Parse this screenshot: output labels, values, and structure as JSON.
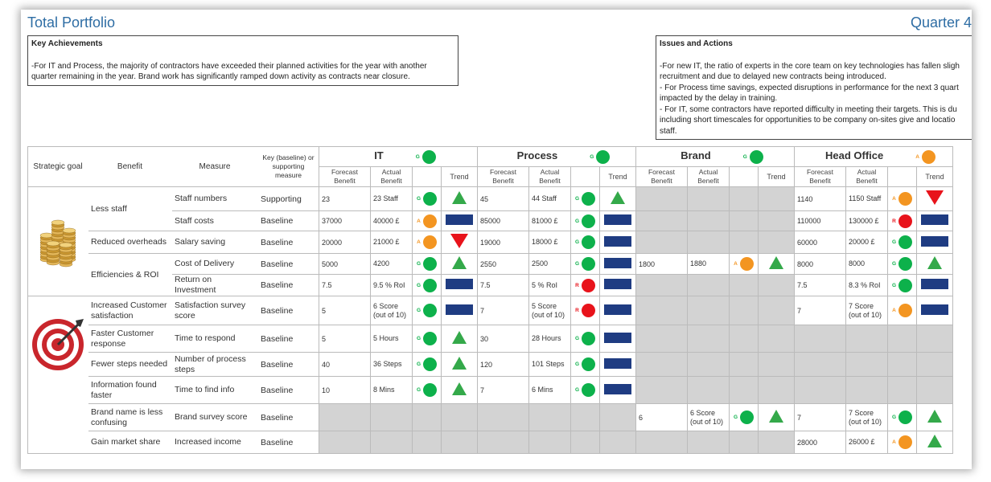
{
  "header": {
    "title": "Total Portfolio",
    "period": "Quarter 4"
  },
  "achievements": {
    "heading": "Key Achievements",
    "text": "-For IT and Process, the majority of contractors have exceeded their planned activities for the year with another quarter remaining in the year. Brand work has significantly ramped down activity as contracts near closure."
  },
  "issues": {
    "heading": "Issues and Actions",
    "text": "-For new IT, the ratio of experts in the core team on key technologies has fallen sligh\nrecruitment and due to delayed new contracts being introduced.\n- For Process time savings, expected disruptions in performance for the next 3 quart\nimpacted by the delay in training.\n- For IT, some contractors have reported difficulty in meeting their targets. This is du\nincluding short timescales for opportunities to be company on-sites give and locatio\nstaff."
  },
  "table": {
    "col_strategic": "Strategic goal",
    "col_benefit": "Benefit",
    "col_measure": "Measure",
    "col_key": "Key (baseline) or supporting measure",
    "groups": [
      {
        "name": "IT",
        "rag": "G"
      },
      {
        "name": "Process",
        "rag": "G"
      },
      {
        "name": "Brand",
        "rag": "G"
      },
      {
        "name": "Head Office",
        "rag": "A"
      }
    ],
    "sub_forecast": "Forecast Benefit",
    "sub_actual": "Actual Benefit",
    "sub_trend": "Trend",
    "goal_icons": [
      "coins-stack-icon",
      "target-dart-icon"
    ],
    "benefits": [
      "Less staff",
      "Reduced overheads",
      "Efficiencies & ROI",
      "Increased Customer satisfaction",
      "Faster Customer response",
      "Fewer steps needed",
      "Information found faster",
      "Brand name is less confusing",
      "Gain market share"
    ],
    "rows": [
      {
        "measure": "Staff numbers",
        "key": "Supporting",
        "it": [
          "23",
          "23 Staff",
          "G",
          "up"
        ],
        "process": [
          "45",
          "44 Staff",
          "G",
          "up"
        ],
        "brand": null,
        "ho": [
          "1140",
          "1150 Staff",
          "A",
          "down"
        ]
      },
      {
        "measure": "Staff costs",
        "key": "Baseline",
        "it": [
          "37000",
          "40000 £",
          "A",
          "bar"
        ],
        "process": [
          "85000",
          "81000 £",
          "G",
          "bar"
        ],
        "brand": null,
        "ho": [
          "110000",
          "130000 £",
          "R",
          "bar"
        ]
      },
      {
        "measure": "Salary saving",
        "key": "Baseline",
        "it": [
          "20000",
          "21000 £",
          "A",
          "down"
        ],
        "process": [
          "19000",
          "18000 £",
          "G",
          "bar"
        ],
        "brand": null,
        "ho": [
          "60000",
          "20000 £",
          "G",
          "bar"
        ]
      },
      {
        "measure": "Cost of Delivery",
        "key": "Baseline",
        "it": [
          "5000",
          "4200",
          "G",
          "up"
        ],
        "process": [
          "2550",
          "2500",
          "G",
          "bar"
        ],
        "brand": [
          "1800",
          "1880",
          "A",
          "up"
        ],
        "ho": [
          "8000",
          "8000",
          "G",
          "up"
        ]
      },
      {
        "measure": "Return on Investment",
        "key": "Baseline",
        "it": [
          "7.5",
          "9.5 % RoI",
          "G",
          "bar"
        ],
        "process": [
          "7.5",
          "5 % RoI",
          "R",
          "bar"
        ],
        "brand": null,
        "ho": [
          "7.5",
          "8.3 % RoI",
          "G",
          "bar"
        ]
      },
      {
        "measure": "Satisfaction survey score",
        "key": "Baseline",
        "it": [
          "5",
          "6 Score (out of 10)",
          "G",
          "bar"
        ],
        "process": [
          "7",
          "5 Score (out of 10)",
          "R",
          "bar"
        ],
        "brand": null,
        "ho": [
          "7",
          "7 Score (out of 10)",
          "A",
          "bar"
        ]
      },
      {
        "measure": "Time to respond",
        "key": "Baseline",
        "it": [
          "5",
          "5 Hours",
          "G",
          "up"
        ],
        "process": [
          "30",
          "28 Hours",
          "G",
          "bar"
        ],
        "brand": null,
        "ho": null
      },
      {
        "measure": "Number of process steps",
        "key": "Baseline",
        "it": [
          "40",
          "36 Steps",
          "G",
          "up"
        ],
        "process": [
          "120",
          "101 Steps",
          "G",
          "bar"
        ],
        "brand": null,
        "ho": null
      },
      {
        "measure": "Time to find info",
        "key": "Baseline",
        "it": [
          "10",
          "8 Mins",
          "G",
          "up"
        ],
        "process": [
          "7",
          "6 Mins",
          "G",
          "bar"
        ],
        "brand": null,
        "ho": null
      },
      {
        "measure": "Brand survey score",
        "key": "Baseline",
        "it": null,
        "process": null,
        "brand": [
          "6",
          "6 Score (out of 10)",
          "G",
          "up"
        ],
        "ho": [
          "7",
          "7 Score (out of 10)",
          "G",
          "up"
        ]
      },
      {
        "measure": "Increased income",
        "key": "Baseline",
        "it": null,
        "process": null,
        "brand": null,
        "ho": [
          "28000",
          "26000 £",
          "A",
          "up"
        ]
      }
    ],
    "colors": {
      "green": "#0db14b",
      "amber": "#f39521",
      "red": "#e8131b",
      "trend_bar": "#1f3c82",
      "na_fill": "#d3d3d3",
      "title": "#2e6da4"
    }
  }
}
